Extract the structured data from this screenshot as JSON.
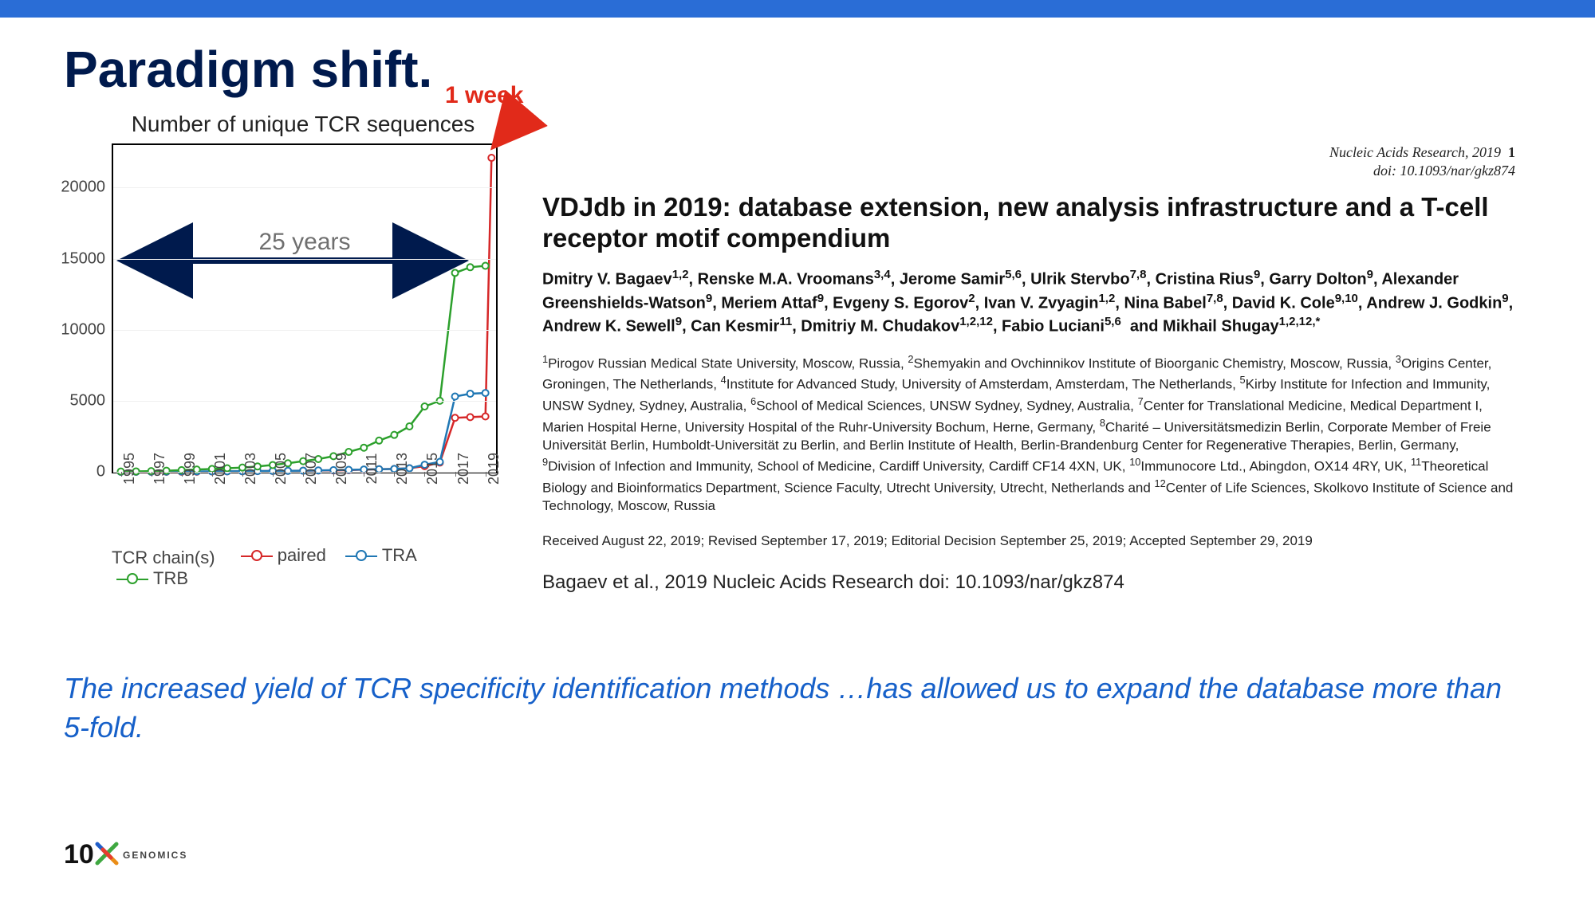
{
  "slide": {
    "title": "Paradigm shift.",
    "quote": "The increased yield of TCR specificity identification methods …has allowed us to expand the database more than 5-fold."
  },
  "annotations": {
    "span_label": "25 years",
    "spike_label": "1 week",
    "span_color": "#001a4d",
    "spike_color": "#e12a1a"
  },
  "chart": {
    "type": "line",
    "title": "Number of unique TCR sequences",
    "x_categories": [
      "1995",
      "1997",
      "1999",
      "2001",
      "2003",
      "2005",
      "2007",
      "2009",
      "2011",
      "2013",
      "2015",
      "2017",
      "2019"
    ],
    "yticks": [
      0,
      5000,
      10000,
      15000,
      20000
    ],
    "ylim": [
      0,
      23000
    ],
    "xlim": [
      1994.5,
      2019.7
    ],
    "background_color": "#ffffff",
    "axis_color": "#000000",
    "grid_color": "#f0f0f0",
    "title_fontsize": 28,
    "tick_fontsize": 18,
    "marker_size": 8,
    "line_width": 2.5,
    "series": {
      "paired": {
        "label": "paired",
        "color": "#d62728",
        "x": [
          1995,
          1996,
          1997,
          1998,
          1999,
          2000,
          2001,
          2002,
          2003,
          2004,
          2005,
          2006,
          2007,
          2008,
          2009,
          2010,
          2011,
          2012,
          2013,
          2014,
          2015,
          2016,
          2017,
          2018,
          2019,
          2019.4
        ],
        "y": [
          0,
          0,
          0,
          0,
          5,
          10,
          20,
          30,
          40,
          50,
          60,
          70,
          80,
          90,
          100,
          120,
          150,
          180,
          200,
          250,
          400,
          650,
          3800,
          3850,
          3900,
          22100
        ]
      },
      "TRA": {
        "label": "TRA",
        "color": "#1f77b4",
        "x": [
          1995,
          1996,
          1997,
          1998,
          1999,
          2000,
          2001,
          2002,
          2003,
          2004,
          2005,
          2006,
          2007,
          2008,
          2009,
          2010,
          2011,
          2012,
          2013,
          2014,
          2015,
          2016,
          2017,
          2018,
          2019
        ],
        "y": [
          0,
          5,
          10,
          15,
          20,
          25,
          30,
          35,
          40,
          50,
          60,
          70,
          80,
          100,
          120,
          140,
          160,
          180,
          200,
          250,
          500,
          700,
          5300,
          5500,
          5550
        ]
      },
      "TRB": {
        "label": "TRB",
        "color": "#2ca02c",
        "x": [
          1995,
          1996,
          1997,
          1998,
          1999,
          2000,
          2001,
          2002,
          2003,
          2004,
          2005,
          2006,
          2007,
          2008,
          2009,
          2010,
          2011,
          2012,
          2013,
          2014,
          2015,
          2016,
          2017,
          2018,
          2019
        ],
        "y": [
          20,
          30,
          50,
          80,
          120,
          160,
          200,
          250,
          300,
          380,
          480,
          600,
          750,
          900,
          1100,
          1400,
          1700,
          2200,
          2600,
          3200,
          4600,
          5000,
          14000,
          14400,
          14500
        ]
      }
    },
    "legend": {
      "title": "TCR chain(s)",
      "order": [
        "paired",
        "TRA",
        "TRB"
      ]
    }
  },
  "paper": {
    "journal": "Nucleic Acids Research, 2019",
    "page": "1",
    "doi_line": "doi: 10.1093/nar/gkz874",
    "title": "VDJdb in 2019: database extension, new analysis infrastructure and a T-cell receptor motif compendium",
    "authors_html": "Dmitry V. Bagaev<sup>1,2</sup>, Renske M.A. Vroomans<sup>3,4</sup>, Jerome Samir<sup>5,6</sup>, Ulrik Stervbo<sup>7,8</sup>, Cristina Rius<sup>9</sup>, Garry Dolton<sup>9</sup>, Alexander Greenshields-Watson<sup>9</sup>, Meriem Attaf<sup>9</sup>, Evgeny S. Egorov<sup>2</sup>, Ivan V. Zvyagin<sup>1,2</sup>, Nina Babel<sup>7,8</sup>, David K. Cole<sup>9,10</sup>, Andrew J. Godkin<sup>9</sup>, Andrew K. Sewell<sup>9</sup>, Can Kesmir<sup>11</sup>, Dmitriy M. Chudakov<sup>1,2,12</sup>, Fabio Luciani<sup>5,6</sup> &nbsp;and Mikhail Shugay<sup>1,2,12,*</sup>",
    "affiliations_html": "<sup>1</sup>Pirogov Russian Medical State University, Moscow, Russia, <sup>2</sup>Shemyakin and Ovchinnikov Institute of Bioorganic Chemistry, Moscow, Russia, <sup>3</sup>Origins Center, Groningen, The Netherlands, <sup>4</sup>Institute for Advanced Study, University of Amsterdam, Amsterdam, The Netherlands, <sup>5</sup>Kirby Institute for Infection and Immunity, UNSW Sydney, Sydney, Australia, <sup>6</sup>School of Medical Sciences, UNSW Sydney, Sydney, Australia, <sup>7</sup>Center for Translational Medicine, Medical Department I, Marien Hospital Herne, University Hospital of the Ruhr-University Bochum, Herne, Germany, <sup>8</sup>Charité – Universitätsmedizin Berlin, Corporate Member of Freie Universität Berlin, Humboldt-Universität zu Berlin, and Berlin Institute of Health, Berlin-Brandenburg Center for Regenerative Therapies, Berlin, Germany, <sup>9</sup>Division of Infection and Immunity, School of Medicine, Cardiff University, Cardiff CF14 4XN, UK, <sup>10</sup>Immunocore Ltd., Abingdon, OX14 4RY, UK, <sup>11</sup>Theoretical Biology and Bioinformatics Department, Science Faculty, Utrecht University, Utrecht, Netherlands and <sup>12</sup>Center of Life Sciences, Skolkovo Institute of Science and Technology, Moscow, Russia",
    "revision_history": "Received August 22, 2019; Revised September 17, 2019; Editorial Decision September 25, 2019; Accepted September 29, 2019",
    "citation": "Bagaev et al., 2019 Nucleic Acids Research doi: 10.1093/nar/gkz874"
  },
  "logo": {
    "brand": "10",
    "sub": "GENOMICS",
    "x_stroke_colors": [
      "#3fa841",
      "#1f5dc8",
      "#ea8d17",
      "#e63d2e"
    ]
  }
}
